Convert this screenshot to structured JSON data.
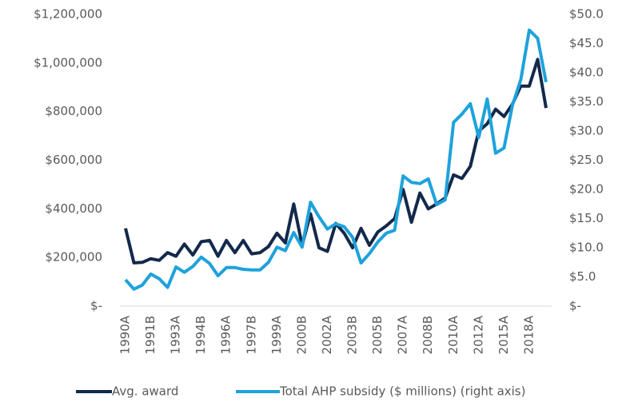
{
  "chart_data": {
    "type": "line",
    "categories": [
      "1990A",
      null,
      null,
      "1991B",
      null,
      null,
      "1993A",
      null,
      null,
      "1994B",
      null,
      null,
      "1996A",
      null,
      null,
      "1997B",
      null,
      null,
      "1999A",
      null,
      null,
      "2000B",
      null,
      null,
      "2002A",
      null,
      null,
      "2003B",
      null,
      null,
      "2005B",
      null,
      null,
      "2007A",
      null,
      null,
      "2008B",
      null,
      null,
      "2010A",
      null,
      null,
      "2012A",
      null,
      null,
      "2015A",
      null,
      null,
      "2018A",
      null,
      null
    ],
    "series": [
      {
        "name": "Avg. award",
        "color": "#13294b",
        "values": [
          320000,
          178000,
          180000,
          195000,
          188000,
          220000,
          205000,
          255000,
          210000,
          265000,
          270000,
          205000,
          270000,
          220000,
          270000,
          215000,
          220000,
          245000,
          300000,
          260000,
          420000,
          250000,
          380000,
          240000,
          225000,
          340000,
          300000,
          240000,
          320000,
          250000,
          305000,
          330000,
          360000,
          480000,
          345000,
          465000,
          400000,
          420000,
          445000,
          540000,
          525000,
          575000,
          720000,
          750000,
          810000,
          780000,
          830000,
          905000,
          905000,
          1015000,
          815000
        ]
      },
      {
        "name": "Total AHP subsidy ($ millions) (right axis)",
        "color": "#1ea2dc",
        "axis": "y2",
        "values": [
          4.5,
          2.9,
          3.6,
          5.5,
          4.7,
          3.2,
          6.7,
          5.8,
          6.8,
          8.4,
          7.3,
          5.2,
          6.6,
          6.6,
          6.3,
          6.2,
          6.2,
          7.5,
          10.1,
          9.5,
          12.6,
          10.1,
          17.8,
          15.3,
          13.2,
          14.1,
          13.6,
          11.8,
          7.4,
          9.0,
          11.0,
          12.5,
          13.0,
          22.3,
          21.2,
          21.0,
          21.8,
          17.4,
          18.2,
          31.5,
          32.9,
          34.7,
          28.9,
          35.5,
          26.2,
          27.1,
          34.4,
          38.8,
          47.3,
          45.9,
          38.4
        ]
      }
    ],
    "ylim": [
      0,
      1200000
    ],
    "yticks": [
      {
        "value": 0,
        "label": "$-"
      },
      {
        "value": 200000,
        "label": "$200,000"
      },
      {
        "value": 400000,
        "label": "$400,000"
      },
      {
        "value": 600000,
        "label": "$600,000"
      },
      {
        "value": 800000,
        "label": "$800,000"
      },
      {
        "value": 1000000,
        "label": "$1,000,000"
      },
      {
        "value": 1200000,
        "label": "$1,200,000"
      }
    ],
    "y2lim": [
      0,
      50
    ],
    "y2ticks": [
      {
        "value": 0,
        "label": "$-"
      },
      {
        "value": 5,
        "label": "$5.0"
      },
      {
        "value": 10,
        "label": "$10.0"
      },
      {
        "value": 15,
        "label": "$15.0"
      },
      {
        "value": 20,
        "label": "$20.0"
      },
      {
        "value": 25,
        "label": "$25.0"
      },
      {
        "value": 30,
        "label": "$30.0"
      },
      {
        "value": 35,
        "label": "$35.0"
      },
      {
        "value": 40,
        "label": "$40.0"
      },
      {
        "value": 45,
        "label": "$45.0"
      },
      {
        "value": 50,
        "label": "$50.0"
      }
    ],
    "grid": false,
    "legend": "bottom"
  }
}
